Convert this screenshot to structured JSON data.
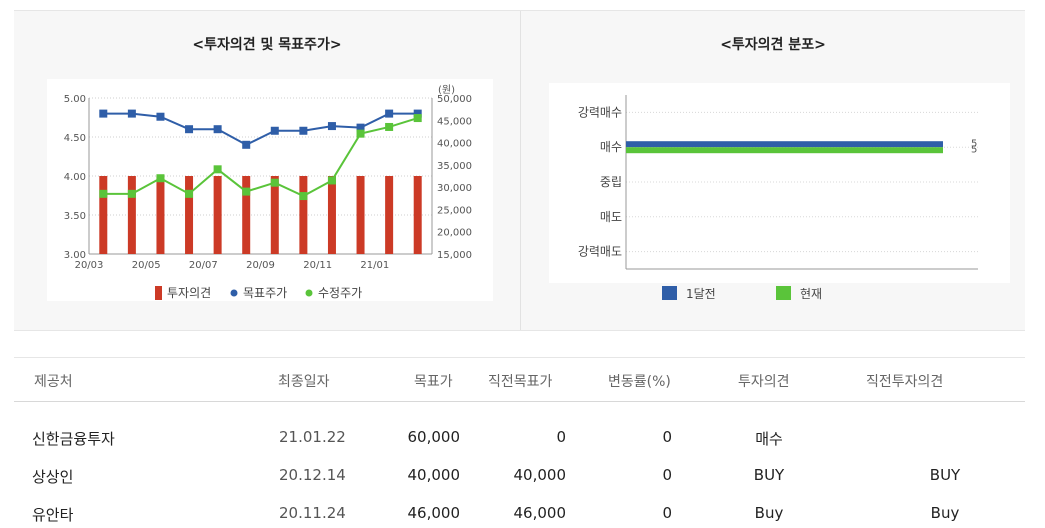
{
  "left_panel": {
    "title": "<투자의견 및 목표주가>"
  },
  "right_panel": {
    "title": "<투자의견 분포>"
  },
  "chart_data": [
    {
      "type": "bar+line",
      "title": "<투자의견 및 목표주가>",
      "categories": [
        "20/03",
        "20/04",
        "20/05",
        "20/06",
        "20/07",
        "20/08",
        "20/09",
        "20/10",
        "20/11",
        "20/12",
        "21/01",
        "21/02"
      ],
      "x_tick_labels": [
        "20/03",
        "20/05",
        "20/07",
        "20/09",
        "20/11",
        "21/01"
      ],
      "y_left": {
        "ylim": [
          3.0,
          5.0
        ],
        "ticks": [
          "3.00",
          "3.50",
          "4.00",
          "4.50",
          "5.00"
        ]
      },
      "y_right": {
        "unit": "(원)",
        "ylim": [
          15000,
          50000
        ],
        "ticks": [
          "15,000",
          "20,000",
          "25,000",
          "30,000",
          "35,000",
          "40,000",
          "45,000",
          "50,000"
        ]
      },
      "series": [
        {
          "name": "투자의견",
          "type": "bar",
          "axis": "left",
          "color": "#cc3a26",
          "values": [
            4.0,
            4.0,
            4.0,
            4.0,
            4.0,
            4.0,
            4.0,
            4.0,
            4.0,
            4.0,
            4.0,
            4.0
          ]
        },
        {
          "name": "목표주가",
          "type": "line",
          "axis": "left",
          "color": "#2f5ea8",
          "values": [
            4.8,
            4.8,
            4.76,
            4.6,
            4.6,
            4.4,
            4.58,
            4.58,
            4.64,
            4.62,
            4.8,
            4.8
          ]
        },
        {
          "name": "수정주가",
          "type": "line",
          "axis": "right",
          "color": "#5ac43a",
          "values": [
            28500,
            28500,
            32000,
            28500,
            34000,
            29000,
            31000,
            28000,
            31500,
            42000,
            43500,
            45500
          ]
        }
      ],
      "legend": [
        "투자의견",
        "목표주가",
        "수정주가"
      ],
      "legend_position": "bottom"
    },
    {
      "type": "bar",
      "orientation": "horizontal",
      "title": "<투자의견 분포>",
      "categories": [
        "강력매수",
        "매수",
        "중립",
        "매도",
        "강력매도"
      ],
      "xlim": [
        0,
        5
      ],
      "series": [
        {
          "name": "1달전",
          "color": "#2f5ea8",
          "values": [
            0,
            5,
            0,
            0,
            0
          ]
        },
        {
          "name": "현재",
          "color": "#5ac43a",
          "values": [
            0,
            5,
            0,
            0,
            0
          ]
        }
      ],
      "data_labels": [
        "5",
        "5"
      ],
      "legend": [
        "1달전",
        "현재"
      ],
      "legend_position": "bottom"
    }
  ],
  "table": {
    "headers": [
      "제공처",
      "최종일자",
      "목표가",
      "직전목표가",
      "변동률(%)",
      "투자의견",
      "직전투자의견"
    ],
    "rows": [
      [
        "신한금융투자",
        "21.01.22",
        "60,000",
        "0",
        "0",
        "매수",
        ""
      ],
      [
        "상상인",
        "20.12.14",
        "40,000",
        "40,000",
        "0",
        "BUY",
        "BUY"
      ],
      [
        "유안타",
        "20.11.24",
        "46,000",
        "46,000",
        "0",
        "Buy",
        "Buy"
      ]
    ]
  }
}
